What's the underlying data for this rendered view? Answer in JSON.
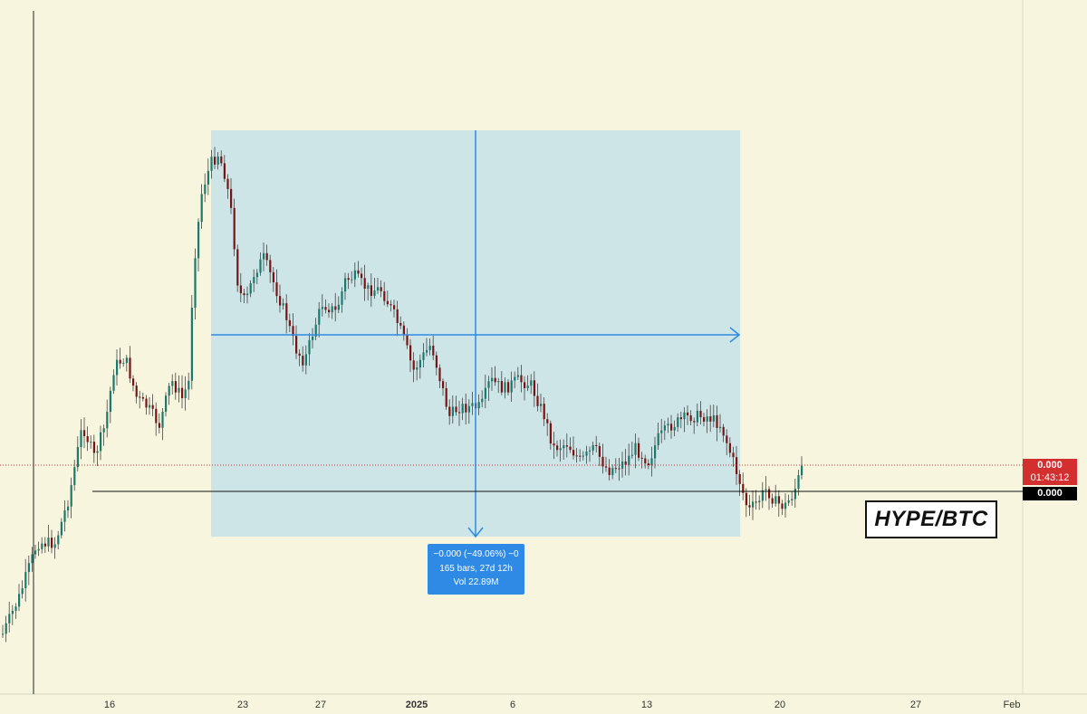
{
  "chart_data": {
    "type": "candlestick",
    "title": "",
    "pair": "HYPE/BTC",
    "x_tick_labels": [
      "16",
      "23",
      "27",
      "2025",
      "6",
      "13",
      "20",
      "27",
      "Feb"
    ],
    "price_labels": {
      "current_price": "0.000",
      "countdown": "01:43:12",
      "support_price": "0.000"
    },
    "measurement": {
      "change": "−0.000 (−49.06%) −0",
      "span": "165 bars, 27d 12h",
      "volume": "Vol 22.89M",
      "percent_change": -49.06,
      "bars": 165
    },
    "colors": {
      "background": "#f8f5de",
      "up_candle": "#1a7a6e",
      "down_candle": "#7a1414",
      "wick": "#444444",
      "measure_fill": "#bfdfe8",
      "measure_line": "#2f8ae6",
      "current_price_line": "#d32f2f",
      "support_line": "#111111"
    },
    "grid": false
  }
}
